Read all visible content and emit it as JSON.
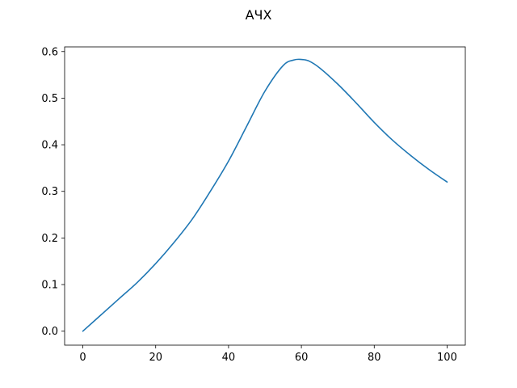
{
  "chart_data": {
    "type": "line",
    "title": "АЧХ",
    "xlabel": "",
    "ylabel": "",
    "xlim": [
      -5,
      105
    ],
    "ylim": [
      -0.03,
      0.61
    ],
    "x_ticks": [
      0,
      20,
      40,
      60,
      80,
      100
    ],
    "y_ticks": [
      0.0,
      0.1,
      0.2,
      0.3,
      0.4,
      0.5,
      0.6
    ],
    "x_tick_labels": [
      "0",
      "20",
      "40",
      "60",
      "80",
      "100"
    ],
    "y_tick_labels": [
      "0.0",
      "0.1",
      "0.2",
      "0.3",
      "0.4",
      "0.5",
      "0.6"
    ],
    "grid": false,
    "series": [
      {
        "color": "#1f77b4",
        "x": [
          0,
          5,
          10,
          15,
          20,
          25,
          30,
          35,
          40,
          45,
          50,
          55,
          58,
          60,
          62,
          65,
          70,
          75,
          80,
          85,
          90,
          95,
          100
        ],
        "y": [
          0.0,
          0.035,
          0.07,
          0.105,
          0.145,
          0.19,
          0.24,
          0.3,
          0.365,
          0.44,
          0.515,
          0.57,
          0.582,
          0.583,
          0.58,
          0.565,
          0.53,
          0.49,
          0.448,
          0.41,
          0.377,
          0.347,
          0.32
        ]
      }
    ]
  }
}
